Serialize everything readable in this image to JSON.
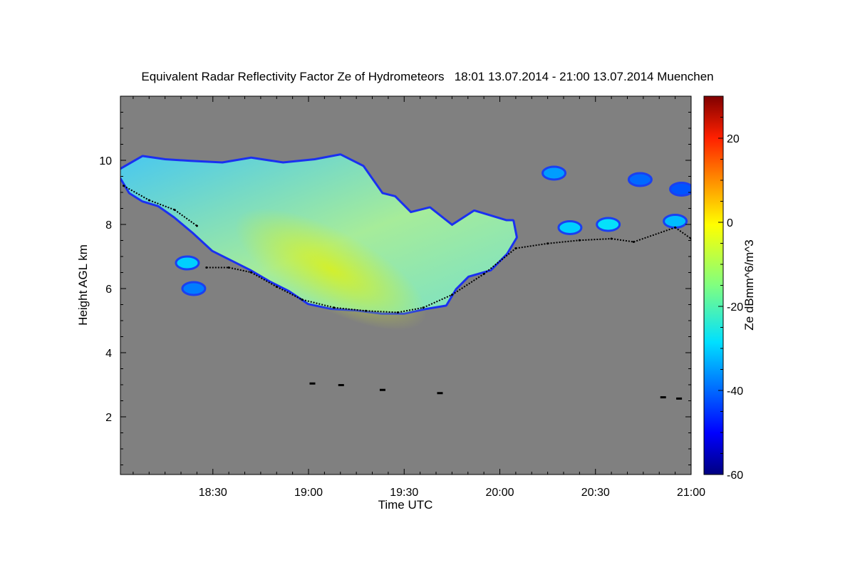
{
  "chart_data": {
    "type": "heatmap",
    "title": "Equivalent Radar Reflectivity Factor Ze of Hydrometeors   18:01 13.07.2014 - 21:00 13.07.2014 Muenchen",
    "xlabel": "Time UTC",
    "ylabel": "Height AGL km",
    "x_range_minutes": [
      1081,
      1260
    ],
    "ylim": [
      0.2,
      12.0
    ],
    "x_ticks": [
      {
        "minute": 1110,
        "label": "18:30"
      },
      {
        "minute": 1140,
        "label": "19:00"
      },
      {
        "minute": 1170,
        "label": "19:30"
      },
      {
        "minute": 1200,
        "label": "20:00"
      },
      {
        "minute": 1230,
        "label": "20:30"
      },
      {
        "minute": 1260,
        "label": "21:00"
      }
    ],
    "y_ticks": [
      2,
      4,
      6,
      8,
      10
    ],
    "colorbar": {
      "label": "Ze dBmm^6/m^3",
      "min": -60,
      "max": 30,
      "ticks": [
        -60,
        -40,
        -20,
        0,
        20
      ]
    },
    "background_color": "#808080",
    "main_cloud": {
      "description": "ice cloud layer",
      "top_km": [
        [
          1081,
          9.7
        ],
        [
          1088,
          10.1
        ],
        [
          1095,
          10.0
        ],
        [
          1103,
          9.95
        ],
        [
          1113,
          9.9
        ],
        [
          1122,
          10.05
        ],
        [
          1132,
          9.9
        ],
        [
          1142,
          10.0
        ],
        [
          1150,
          10.15
        ],
        [
          1157,
          9.8
        ],
        [
          1163,
          8.95
        ],
        [
          1167,
          8.85
        ],
        [
          1172,
          8.35
        ],
        [
          1178,
          8.5
        ],
        [
          1185,
          7.95
        ],
        [
          1192,
          8.4
        ],
        [
          1202,
          8.1
        ]
      ],
      "base_km": [
        [
          1081,
          9.5
        ],
        [
          1084,
          9.0
        ],
        [
          1088,
          8.75
        ],
        [
          1093,
          8.6
        ],
        [
          1098,
          8.25
        ],
        [
          1104,
          7.75
        ],
        [
          1110,
          7.2
        ],
        [
          1116,
          6.9
        ],
        [
          1122,
          6.6
        ],
        [
          1128,
          6.25
        ],
        [
          1134,
          5.95
        ],
        [
          1140,
          5.55
        ],
        [
          1147,
          5.4
        ],
        [
          1155,
          5.35
        ],
        [
          1163,
          5.25
        ],
        [
          1170,
          5.25
        ],
        [
          1177,
          5.4
        ],
        [
          1183,
          5.5
        ],
        [
          1186,
          6.0
        ],
        [
          1190,
          6.4
        ],
        [
          1197,
          6.6
        ],
        [
          1202,
          7.1
        ],
        [
          1205,
          7.6
        ],
        [
          1204,
          8.1
        ]
      ],
      "core": {
        "center_minute": 1147,
        "center_km": 6.6,
        "ze_dbz": -7
      }
    },
    "small_cells": [
      {
        "minute": 1104,
        "km": 6.0,
        "ze_dbz": -38
      },
      {
        "minute": 1102,
        "km": 6.8,
        "ze_dbz": -30
      },
      {
        "minute": 1217,
        "km": 9.6,
        "ze_dbz": -35
      },
      {
        "minute": 1222,
        "km": 7.9,
        "ze_dbz": -30
      },
      {
        "minute": 1234,
        "km": 8.0,
        "ze_dbz": -28
      },
      {
        "minute": 1244,
        "km": 9.4,
        "ze_dbz": -40
      },
      {
        "minute": 1255,
        "km": 8.1,
        "ze_dbz": -32
      },
      {
        "minute": 1257,
        "km": 9.1,
        "ze_dbz": -42
      }
    ],
    "detected_base_series_km": [
      [
        1082,
        9.25
      ],
      [
        1090,
        8.8
      ],
      [
        1098,
        8.5
      ],
      [
        1105,
        8.0
      ],
      [
        1108,
        6.7
      ],
      [
        1115,
        6.7
      ],
      [
        1122,
        6.55
      ],
      [
        1130,
        6.1
      ],
      [
        1138,
        5.7
      ],
      [
        1148,
        5.45
      ],
      [
        1158,
        5.35
      ],
      [
        1168,
        5.3
      ],
      [
        1176,
        5.45
      ],
      [
        1185,
        5.85
      ],
      [
        1195,
        6.5
      ],
      [
        1205,
        7.3
      ],
      [
        1215,
        7.45
      ],
      [
        1225,
        7.55
      ],
      [
        1235,
        7.6
      ],
      [
        1242,
        7.5
      ],
      [
        1255,
        7.95
      ],
      [
        1260,
        7.6
      ]
    ],
    "low_echo_series_km": [
      [
        1141,
        3.05
      ],
      [
        1150,
        3.0
      ],
      [
        1163,
        2.85
      ],
      [
        1181,
        2.75
      ],
      [
        1251,
        2.62
      ],
      [
        1256,
        2.58
      ]
    ]
  }
}
